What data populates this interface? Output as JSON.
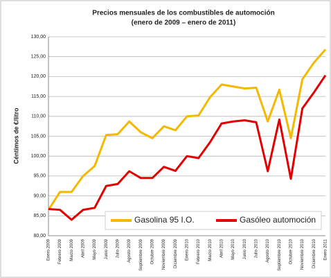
{
  "chart_data": {
    "type": "line",
    "title": "Precios mensuales de los combustibles de automoción",
    "subtitle": "(enero de 2009 – enero de 2011)",
    "y_label": "Céntimos de €/litro",
    "categories": [
      "Enero 2009",
      "Febrero 2009",
      "Marzo 2009",
      "Abril 2009",
      "Mayo 2009",
      "Junio 2009",
      "Julio 2009",
      "Agosto 2009",
      "Septiembre 2009",
      "Octubre 2009",
      "Noviembre 2009",
      "Diciembre 2009",
      "Enero 2010",
      "Febrero 2010",
      "Marzo 2010",
      "Abril 2010",
      "Mayo 2010",
      "Junio 2010",
      "Julio 2010",
      "Agosto 2010",
      "Septiembre 2010",
      "Octubre 2010",
      "Noviembre 2010",
      "Diciembre 2010",
      "Enero 2011"
    ],
    "series": [
      {
        "name": "Gasolina 95 I.O.",
        "color": "#f5b800",
        "values": [
          86.5,
          91,
          91,
          95,
          97.5,
          105.3,
          105.5,
          108.7,
          106,
          104.5,
          107.5,
          106.5,
          110,
          110.2,
          114.8,
          118,
          117.5,
          117,
          117.2,
          108.7,
          116.7,
          104.5,
          119.3,
          123.5,
          126.8
        ]
      },
      {
        "name": "Gasóleo automoción",
        "color": "#e30000",
        "values": [
          86.7,
          86.5,
          84,
          86.5,
          87,
          92.5,
          93,
          96.2,
          94.5,
          94.5,
          97.3,
          96.3,
          100,
          99.5,
          103.5,
          108.2,
          108.7,
          109,
          108.5,
          96.2,
          109.2,
          94.3,
          112,
          116,
          120.3
        ]
      }
    ],
    "ylim": [
      80,
      130
    ],
    "yticks": [
      {
        "value": 80,
        "label": "80,00"
      },
      {
        "value": 85,
        "label": "85,00"
      },
      {
        "value": 90,
        "label": "90,00"
      },
      {
        "value": 95,
        "label": "95,00"
      },
      {
        "value": 100,
        "label": "100,00"
      },
      {
        "value": 105,
        "label": "105,00"
      },
      {
        "value": 110,
        "label": "110,00"
      },
      {
        "value": 115,
        "label": "115,00"
      },
      {
        "value": 120,
        "label": "120,00"
      },
      {
        "value": 125,
        "label": "125,00"
      },
      {
        "value": 130,
        "label": "130,00"
      }
    ],
    "grid": true
  }
}
